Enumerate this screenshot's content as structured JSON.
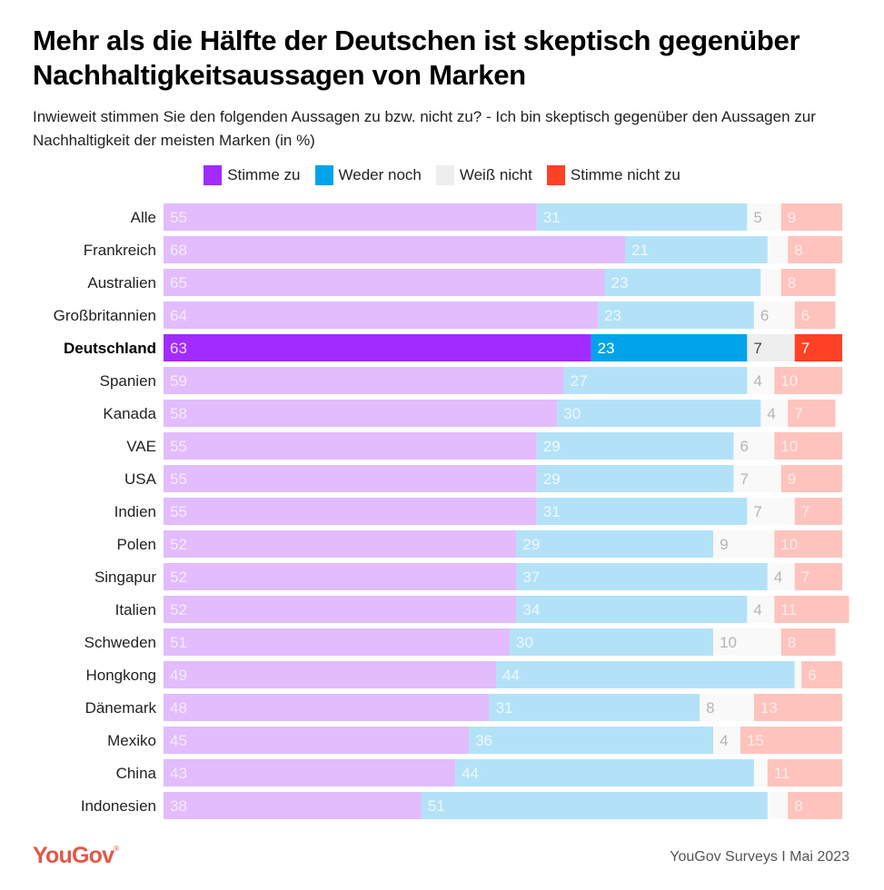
{
  "header": {
    "title": "Mehr als die Hälfte der Deutschen ist skeptisch gegenüber Nachhaltigkeitsaussagen von Marken",
    "subtitle": "Inwieweit stimmen Sie den folgenden Aussagen zu bzw. nicht zu? - Ich bin skeptisch gegenüber den Aussagen zur Nachhaltigkeit der meisten Marken (in %)"
  },
  "legend": [
    {
      "label": "Stimme zu",
      "color": "#a22bff"
    },
    {
      "label": "Weder noch",
      "color": "#00a3ea"
    },
    {
      "label": "Weiß nicht",
      "color": "#eeeeee"
    },
    {
      "label": "Stimme nicht zu",
      "color": "#ff4125"
    }
  ],
  "footer": {
    "logo": "YouGov",
    "source": "YouGov Surveys I Mai 2023"
  },
  "chart_data": {
    "type": "bar",
    "orientation": "horizontal",
    "stacked": true,
    "title": "Mehr als die Hälfte der Deutschen ist skeptisch gegenüber Nachhaltigkeitsaussagen von Marken",
    "xlabel": "",
    "ylabel": "",
    "unit": "%",
    "xlim": [
      0,
      100
    ],
    "highlight": "Deutschland",
    "legend_position": "top-center",
    "colors": {
      "normal": [
        "#e2bcfd",
        "#b3e2f8",
        "#f9f9f9",
        "#fec3bd"
      ],
      "highlight": [
        "#a22bff",
        "#00a3ea",
        "#eeeeee",
        "#ff4125"
      ],
      "label_normal": [
        "#f6eafd",
        "#eef8fd",
        "#b5b5b5",
        "#fdecea"
      ],
      "label_highlight": [
        "#f0dcff",
        "#ffffff",
        "#444444",
        "#ffffff"
      ]
    },
    "categories": [
      "Alle",
      "Frankreich",
      "Australien",
      "Großbritannien",
      "Deutschland",
      "Spanien",
      "Kanada",
      "VAE",
      "USA",
      "Indien",
      "Polen",
      "Singapur",
      "Italien",
      "Schweden",
      "Hongkong",
      "Dänemark",
      "Mexiko",
      "China",
      "Indonesien"
    ],
    "series": [
      {
        "name": "Stimme zu",
        "values": [
          55,
          68,
          65,
          64,
          63,
          59,
          58,
          55,
          55,
          55,
          52,
          52,
          52,
          51,
          49,
          48,
          45,
          43,
          38
        ],
        "labels_shown": [
          true,
          true,
          true,
          true,
          true,
          true,
          true,
          true,
          true,
          true,
          true,
          true,
          true,
          true,
          true,
          true,
          true,
          true,
          true
        ]
      },
      {
        "name": "Weder noch",
        "values": [
          31,
          21,
          23,
          23,
          23,
          27,
          30,
          29,
          29,
          31,
          29,
          37,
          34,
          30,
          44,
          31,
          36,
          44,
          51
        ],
        "labels_shown": [
          true,
          true,
          true,
          true,
          true,
          true,
          true,
          true,
          true,
          true,
          true,
          true,
          true,
          true,
          true,
          true,
          true,
          true,
          true
        ]
      },
      {
        "name": "Weiß nicht",
        "values": [
          5,
          3,
          3,
          6,
          7,
          4,
          4,
          6,
          7,
          7,
          9,
          4,
          4,
          10,
          1,
          8,
          4,
          2,
          3
        ],
        "labels_shown": [
          true,
          false,
          false,
          true,
          true,
          true,
          true,
          true,
          true,
          true,
          true,
          true,
          true,
          true,
          false,
          true,
          true,
          false,
          false
        ]
      },
      {
        "name": "Stimme nicht zu",
        "values": [
          9,
          8,
          8,
          6,
          7,
          10,
          7,
          10,
          9,
          7,
          10,
          7,
          11,
          8,
          6,
          13,
          15,
          11,
          8
        ],
        "labels_shown": [
          true,
          true,
          true,
          true,
          true,
          true,
          true,
          true,
          true,
          true,
          true,
          true,
          true,
          true,
          true,
          true,
          true,
          true,
          true
        ]
      }
    ]
  }
}
